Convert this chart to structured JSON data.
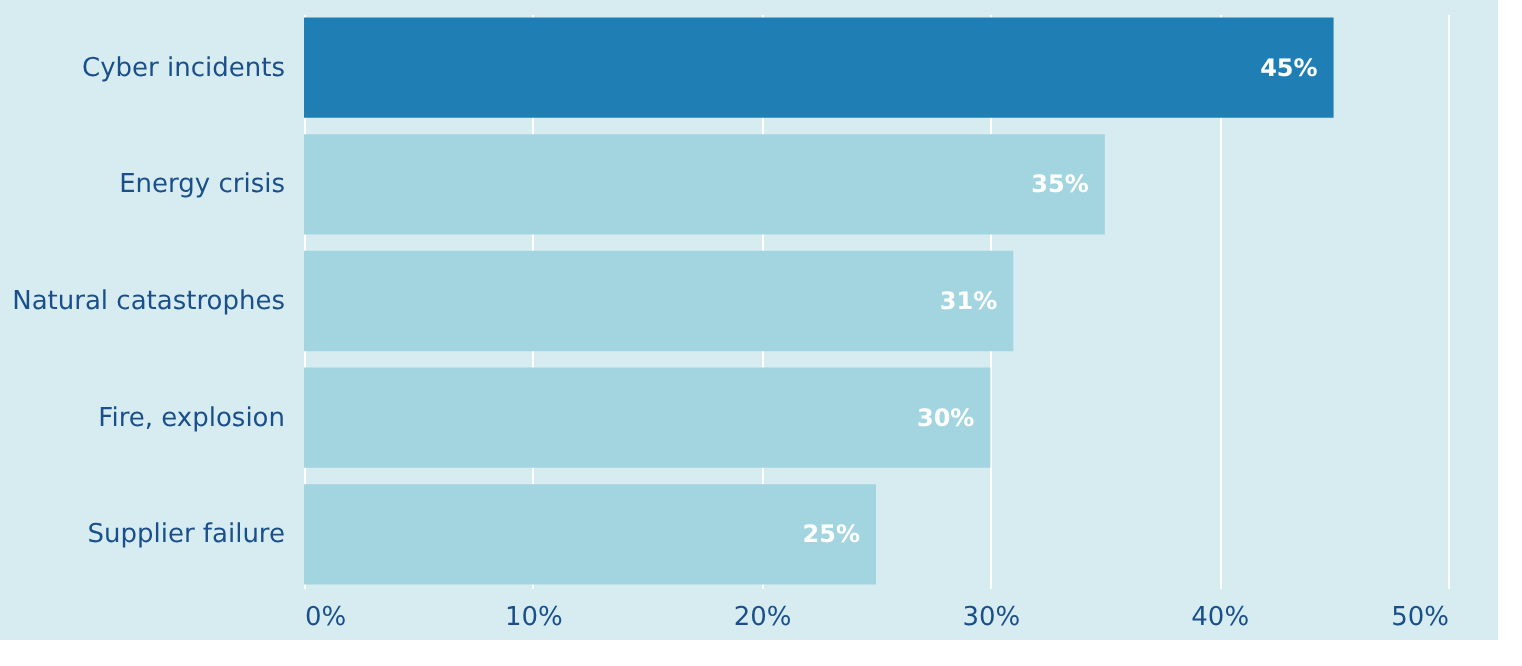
{
  "chart_data": {
    "type": "bar",
    "orientation": "horizontal",
    "categories": [
      "Cyber incidents",
      "Energy crisis",
      "Natural catastrophes",
      "Fire, explosion",
      "Supplier failure"
    ],
    "values": [
      45,
      35,
      31,
      30,
      25
    ],
    "colors": [
      "#1f7fb5",
      "#a3d5e0",
      "#a3d5e0",
      "#a3d5e0",
      "#a3d5e0"
    ],
    "value_labels": [
      "45%",
      "35%",
      "31%",
      "30%",
      "25%"
    ],
    "xlim": [
      0,
      50
    ],
    "xticks": [
      {
        "value": 0,
        "label": "0%"
      },
      {
        "value": 10,
        "label": "10%"
      },
      {
        "value": 20,
        "label": "20%"
      },
      {
        "value": 30,
        "label": "30%"
      },
      {
        "value": 40,
        "label": "40%"
      },
      {
        "value": 50,
        "label": "50%"
      }
    ],
    "grid": "x"
  }
}
